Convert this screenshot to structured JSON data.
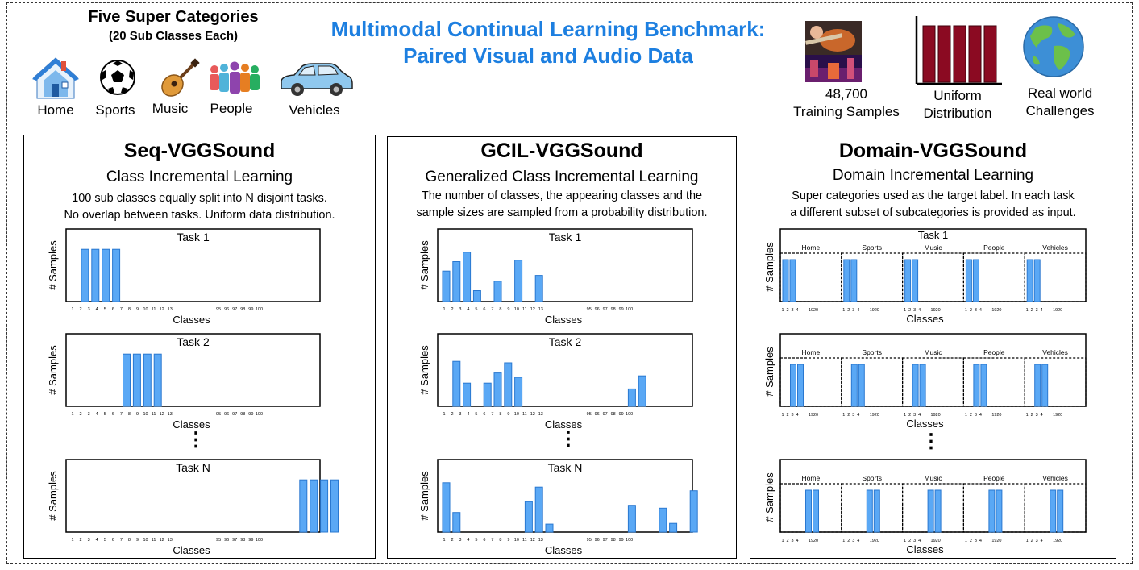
{
  "header": {
    "left_title": "Five Super Categories",
    "left_subtitle": "(20 Sub Classes Each)",
    "main_title_line1": "Multimodal Continual Learning Benchmark:",
    "main_title_line2": "Paired Visual and Audio Data",
    "categories": [
      {
        "label": "Home",
        "icon": "house-icon"
      },
      {
        "label": "Sports",
        "icon": "soccer-ball-icon"
      },
      {
        "label": "Music",
        "icon": "guitar-icon"
      },
      {
        "label": "People",
        "icon": "people-icon"
      },
      {
        "label": "Vehicles",
        "icon": "car-icon"
      }
    ],
    "stats": [
      {
        "line1": "48,700",
        "line2": "Training Samples",
        "icon": "guitar-spectrogram-icon"
      },
      {
        "line1": "Uniform",
        "line2": "Distribution",
        "icon": "uniform-bars-icon"
      },
      {
        "line1": "Real world",
        "line2": "Challenges",
        "icon": "globe-icon"
      }
    ]
  },
  "panels": [
    {
      "title": "Seq-VGGSound",
      "subtitle": "Class Incremental Learning",
      "desc1": "100 sub classes equally split into N disjoint tasks.",
      "desc2": "No overlap between tasks. Uniform data distribution."
    },
    {
      "title": "GCIL-VGGSound",
      "subtitle": "Generalized Class Incremental Learning",
      "desc1": "The number of classes, the appearing classes and the",
      "desc2": "sample sizes are sampled from a probability distribution."
    },
    {
      "title": "Domain-VGGSound",
      "subtitle": "Domain Incremental Learning",
      "desc1": "Super categories used as the target label. In each task",
      "desc2": "a different subset of subcategories is provided as input."
    }
  ],
  "chart_labels": {
    "ylabel": "# Samples",
    "xlabel": "Classes",
    "ellipsis": "⋮",
    "tick_labels": [
      "1",
      "2",
      "3",
      "4",
      "5",
      "6",
      "7",
      "8",
      "9",
      "10",
      "11",
      "12",
      "13",
      "95",
      "96",
      "97",
      "98",
      "99",
      "100"
    ],
    "domain_ticks": [
      "1",
      "2",
      "3",
      "4",
      "19",
      "20"
    ]
  },
  "chart_data": [
    {
      "type": "bar",
      "panel": "Seq-VGGSound",
      "tasks": [
        {
          "name": "Task 1",
          "bars": [
            {
              "pos": 1,
              "v": 0.72
            },
            {
              "pos": 2,
              "v": 0.72
            },
            {
              "pos": 3,
              "v": 0.72
            },
            {
              "pos": 4,
              "v": 0.72
            }
          ]
        },
        {
          "name": "Task 2",
          "bars": [
            {
              "pos": 5,
              "v": 0.72
            },
            {
              "pos": 6,
              "v": 0.72
            },
            {
              "pos": 7,
              "v": 0.72
            },
            {
              "pos": 8,
              "v": 0.72
            }
          ]
        },
        {
          "name": "Task N",
          "bars": [
            {
              "pos": 22,
              "v": 0.72
            },
            {
              "pos": 23,
              "v": 0.72
            },
            {
              "pos": 24,
              "v": 0.72
            },
            {
              "pos": 25,
              "v": 0.72
            }
          ]
        }
      ]
    },
    {
      "type": "bar",
      "panel": "GCIL-VGGSound",
      "tasks": [
        {
          "name": "Task 1",
          "bars": [
            {
              "pos": 0,
              "v": 0.42
            },
            {
              "pos": 1,
              "v": 0.55
            },
            {
              "pos": 2,
              "v": 0.68
            },
            {
              "pos": 3,
              "v": 0.15
            },
            {
              "pos": 5,
              "v": 0.28
            },
            {
              "pos": 7,
              "v": 0.57
            },
            {
              "pos": 9,
              "v": 0.36
            }
          ]
        },
        {
          "name": "Task 2",
          "bars": [
            {
              "pos": 1,
              "v": 0.62
            },
            {
              "pos": 2,
              "v": 0.32
            },
            {
              "pos": 4,
              "v": 0.32
            },
            {
              "pos": 5,
              "v": 0.46
            },
            {
              "pos": 6,
              "v": 0.6
            },
            {
              "pos": 7,
              "v": 0.4
            },
            {
              "pos": 18,
              "v": 0.24
            },
            {
              "pos": 19,
              "v": 0.42
            }
          ]
        },
        {
          "name": "Task N",
          "bars": [
            {
              "pos": 0,
              "v": 0.68
            },
            {
              "pos": 1,
              "v": 0.27
            },
            {
              "pos": 8,
              "v": 0.42
            },
            {
              "pos": 9,
              "v": 0.62
            },
            {
              "pos": 10,
              "v": 0.11
            },
            {
              "pos": 18,
              "v": 0.37
            },
            {
              "pos": 21,
              "v": 0.33
            },
            {
              "pos": 22,
              "v": 0.12
            },
            {
              "pos": 24,
              "v": 0.57
            }
          ]
        }
      ]
    },
    {
      "type": "bar",
      "panel": "Domain-VGGSound",
      "domains": [
        "Home",
        "Sports",
        "Music",
        "People",
        "Vehicles"
      ],
      "tasks": [
        {
          "name": "Task 1",
          "offset": 0
        },
        {
          "name": "",
          "offset": 1
        },
        {
          "name": "",
          "offset": 3
        }
      ]
    }
  ]
}
